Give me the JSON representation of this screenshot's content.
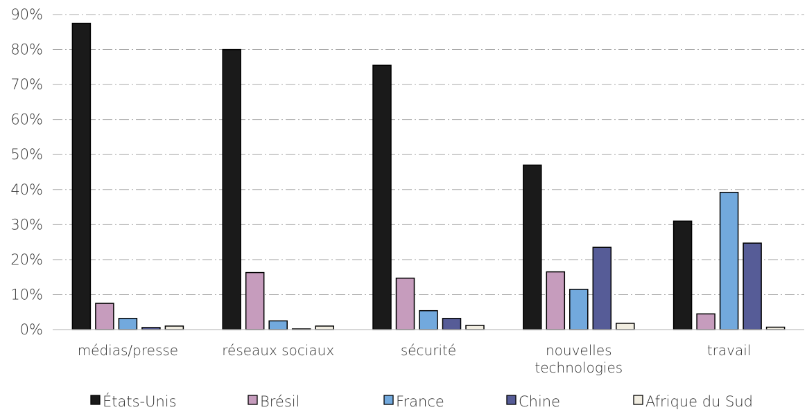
{
  "chart_data": {
    "type": "bar",
    "categories": [
      [
        "médias/presse"
      ],
      [
        "réseaux sociaux"
      ],
      [
        "sécurité"
      ],
      [
        "nouvelles",
        "technologies"
      ],
      [
        "travail"
      ]
    ],
    "series": [
      {
        "name": "États-Unis",
        "color": "#1a1a1a",
        "values": [
          87.5,
          80.0,
          75.5,
          47.0,
          31.0
        ]
      },
      {
        "name": "Brésil",
        "color": "#c69cbd",
        "values": [
          7.5,
          16.3,
          14.7,
          16.5,
          4.5
        ]
      },
      {
        "name": "France",
        "color": "#72a9dd",
        "values": [
          3.2,
          2.5,
          5.4,
          11.5,
          39.2
        ]
      },
      {
        "name": "Chine",
        "color": "#565c97",
        "values": [
          0.6,
          0.2,
          3.2,
          23.5,
          24.7
        ]
      },
      {
        "name": "Afrique du Sud",
        "color": "#f1ede1",
        "values": [
          1.0,
          1.0,
          1.2,
          1.8,
          0.7
        ]
      }
    ],
    "ylim": [
      0,
      90
    ],
    "yticks": [
      "0%",
      "10%",
      "20%",
      "30%",
      "40%",
      "50%",
      "60%",
      "70%",
      "80%",
      "90%"
    ],
    "ytick_values": [
      0,
      10,
      20,
      30,
      40,
      50,
      60,
      70,
      80,
      90
    ],
    "grid": true,
    "legend_position": "bottom",
    "title": "",
    "xlabel": "",
    "ylabel": ""
  }
}
